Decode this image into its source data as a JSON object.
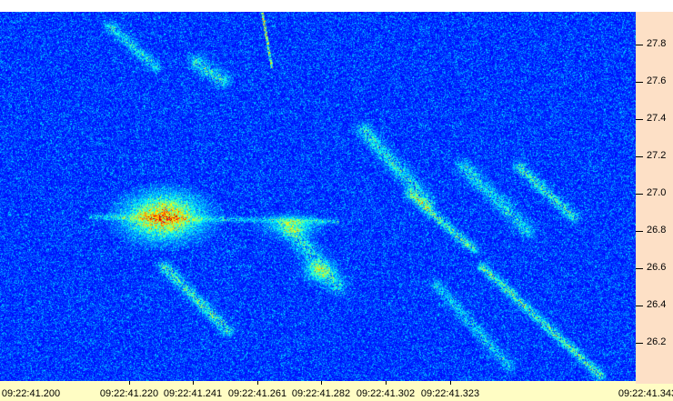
{
  "colors": {
    "plot_background": "#0a2a9a",
    "y_axis_background": "#fde0c6",
    "x_axis_background": "#fffdc4"
  },
  "colormap": "jet",
  "y_axis": {
    "labels": [
      "27.8",
      "27.6",
      "27.4",
      "27.2",
      "27.0",
      "26.8",
      "26.6",
      "26.4",
      "26.2"
    ]
  },
  "x_axis": {
    "labels": [
      "09:22:41.200",
      "09:22:41.220",
      "09:22:41.241",
      "09:22:41.261",
      "09:22:41.282",
      "09:22:41.302",
      "09:22:41.323",
      "09:22:41.343"
    ]
  }
}
